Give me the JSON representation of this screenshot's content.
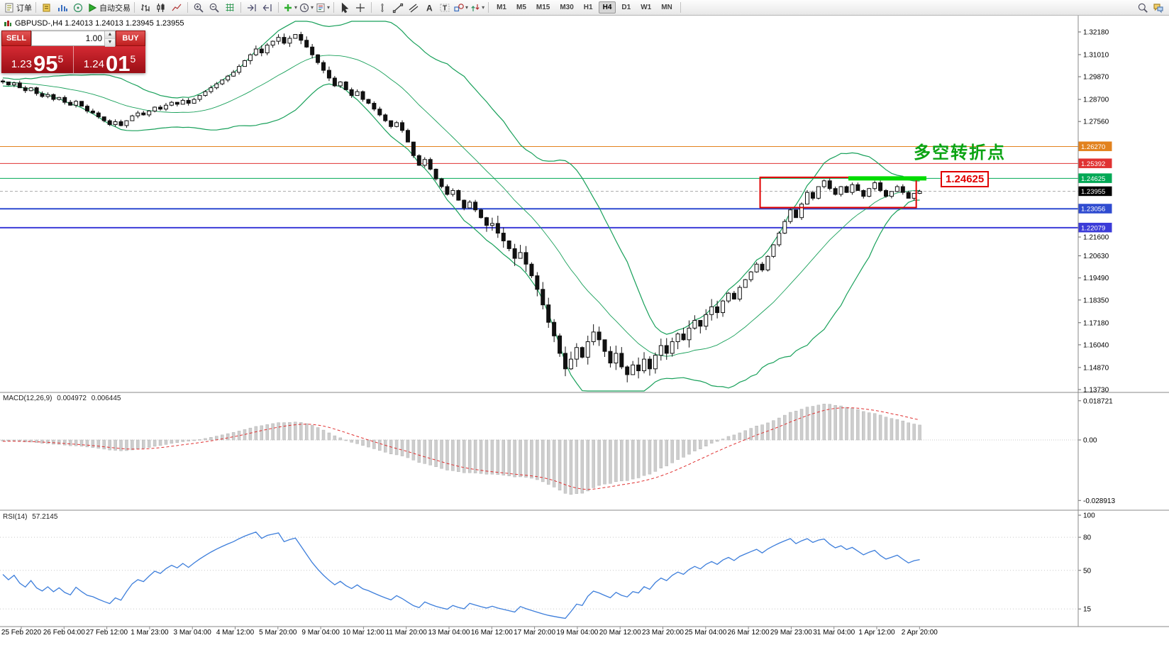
{
  "toolbar": {
    "order_label": "订单",
    "autotrade_label": "自动交易",
    "dropdown_glyph": "▾",
    "timeframes": [
      "M1",
      "M5",
      "M15",
      "M30",
      "H1",
      "H4",
      "D1",
      "W1",
      "MN"
    ],
    "active_timeframe": "H4",
    "groups": [
      {
        "name": "orders",
        "items": [
          {
            "icon": "order-doc-icon",
            "label_key": "order_label"
          }
        ]
      },
      {
        "name": "quick",
        "items": [
          {
            "icon": "new-order-icon"
          },
          {
            "icon": "market-watch-icon"
          },
          {
            "icon": "navigator-icon"
          },
          {
            "icon": "autotrade-icon",
            "label_key": "autotrade_label"
          }
        ]
      },
      {
        "name": "chart-types",
        "items": [
          {
            "icon": "bar-chart-icon"
          },
          {
            "icon": "candlestick-icon"
          },
          {
            "icon": "line-chart-icon"
          }
        ]
      },
      {
        "name": "zoom",
        "items": [
          {
            "icon": "zoom-in-icon"
          },
          {
            "icon": "zoom-out-icon"
          },
          {
            "icon": "grid-icon"
          }
        ]
      },
      {
        "name": "scroll",
        "items": [
          {
            "icon": "auto-scroll-icon"
          },
          {
            "icon": "chart-shift-icon"
          }
        ]
      },
      {
        "name": "insert",
        "items": [
          {
            "icon": "indicators-add-icon",
            "dropdown": true
          },
          {
            "icon": "periods-icon",
            "dropdown": true
          },
          {
            "icon": "templates-icon",
            "dropdown": true
          }
        ]
      },
      {
        "name": "pointer",
        "items": [
          {
            "icon": "cursor-icon"
          },
          {
            "icon": "crosshair-icon"
          }
        ]
      },
      {
        "name": "objects",
        "items": [
          {
            "icon": "vline-icon"
          },
          {
            "icon": "trendline-icon"
          },
          {
            "icon": "channel-icon"
          },
          {
            "icon": "text-icon"
          },
          {
            "icon": "label-icon"
          },
          {
            "icon": "shapes-icon",
            "dropdown": true
          },
          {
            "icon": "arrows-icon",
            "dropdown": true
          }
        ]
      },
      {
        "name": "timeframes",
        "items": "TF"
      },
      {
        "name": "right",
        "items": [
          {
            "icon": "search-icon"
          },
          {
            "icon": "chat-icon"
          }
        ]
      }
    ]
  },
  "chart_header": {
    "title": "GBPUSD-,H4  1.24013 1.24013 1.23945 1.23955"
  },
  "trade_panel": {
    "sell_label": "SELL",
    "buy_label": "BUY",
    "volume": "1.00",
    "sell_price_prefix": "1.23",
    "sell_price_main": "95",
    "sell_price_sup": "5",
    "buy_price_prefix": "1.24",
    "buy_price_main": "01",
    "buy_price_sup": "5"
  },
  "annotations": {
    "turning_point_text": "多空转折点",
    "level_label": "1.24625"
  },
  "indicators": {
    "macd": {
      "label": "MACD(12,26,9)",
      "value_main": "0.004972",
      "value_signal": "0.006445",
      "axis_labels": [
        {
          "text": "0.018721",
          "v": 0.018721
        },
        {
          "text": "0.00",
          "v": 0
        },
        {
          "text": "-0.028913",
          "v": -0.028913
        }
      ]
    },
    "rsi": {
      "label": "RSI(14)",
      "value": "57.2145",
      "axis_labels": [
        {
          "text": "100",
          "v": 100
        },
        {
          "text": "80",
          "v": 80
        },
        {
          "text": "50",
          "v": 50
        },
        {
          "text": "15",
          "v": 15
        }
      ],
      "levels": [
        80,
        50,
        15
      ]
    }
  },
  "price_axis": [
    {
      "value": "1.32180",
      "type": "plain"
    },
    {
      "value": "1.31010",
      "type": "plain"
    },
    {
      "value": "1.29870",
      "type": "plain"
    },
    {
      "value": "1.28700",
      "type": "plain"
    },
    {
      "value": "1.27560",
      "type": "plain"
    },
    {
      "value": "1.26270",
      "type": "badge",
      "color": "#e2821e"
    },
    {
      "value": "1.25392",
      "type": "badge",
      "color": "#e03232"
    },
    {
      "value": "1.24625",
      "type": "badge",
      "color": "#00a854"
    },
    {
      "value": "1.23955",
      "type": "badge",
      "color": "#000000"
    },
    {
      "value": "1.23056",
      "type": "badge",
      "color": "#2f4bd0"
    },
    {
      "value": "1.22079",
      "type": "badge",
      "color": "#3b3bd8"
    },
    {
      "value": "1.21600",
      "type": "plain"
    },
    {
      "value": "1.20630",
      "type": "plain"
    },
    {
      "value": "1.19490",
      "type": "plain"
    },
    {
      "value": "1.18350",
      "type": "plain"
    },
    {
      "value": "1.17180",
      "type": "plain"
    },
    {
      "value": "1.16040",
      "type": "plain"
    },
    {
      "value": "1.14870",
      "type": "plain"
    },
    {
      "value": "1.13730",
      "type": "plain"
    }
  ],
  "chart_data": {
    "type": "candlestick",
    "symbol": "GBPUSD-",
    "timeframe": "H4",
    "ylim": [
      1.1373,
      1.3218
    ],
    "x_labels": [
      "25 Feb 2020",
      "26 Feb 04:00",
      "27 Feb 12:00",
      "1 Mar 23:00",
      "3 Mar 04:00",
      "4 Mar 12:00",
      "5 Mar 20:00",
      "9 Mar 04:00",
      "10 Mar 12:00",
      "11 Mar 20:00",
      "13 Mar 04:00",
      "16 Mar 12:00",
      "17 Mar 20:00",
      "19 Mar 04:00",
      "20 Mar 12:00",
      "23 Mar 20:00",
      "25 Mar 04:00",
      "26 Mar 12:00",
      "29 Mar 23:00",
      "31 Mar 04:00",
      "1 Apr 12:00",
      "2 Apr 20:00"
    ],
    "warmup_closes": [
      1.298,
      1.2975,
      1.2985,
      1.297,
      1.296,
      1.2972,
      1.2965,
      1.2955,
      1.2968,
      1.2958,
      1.295,
      1.2962,
      1.2955,
      1.2945,
      1.2958,
      1.295,
      1.2942,
      1.2955,
      1.2948,
      1.2965
    ],
    "closes": [
      1.296,
      1.2945,
      1.2955,
      1.293,
      1.2915,
      1.293,
      1.29,
      1.2885,
      1.2895,
      1.287,
      1.288,
      1.2855,
      1.284,
      1.286,
      1.2835,
      1.281,
      1.28,
      1.278,
      1.276,
      1.274,
      1.2755,
      1.2735,
      1.276,
      1.2785,
      1.28,
      1.279,
      1.281,
      1.283,
      1.282,
      1.284,
      1.2855,
      1.2845,
      1.2865,
      1.285,
      1.287,
      1.289,
      1.291,
      1.293,
      1.295,
      1.297,
      1.299,
      1.301,
      1.304,
      1.307,
      1.31,
      1.313,
      1.311,
      1.315,
      1.317,
      1.319,
      1.316,
      1.3185,
      1.3205,
      1.3175,
      1.314,
      1.31,
      1.306,
      1.302,
      1.298,
      1.294,
      1.296,
      1.292,
      1.289,
      1.291,
      1.287,
      1.285,
      1.282,
      1.279,
      1.276,
      1.273,
      1.275,
      1.271,
      1.265,
      1.258,
      1.253,
      1.256,
      1.251,
      1.246,
      1.242,
      1.238,
      1.24,
      1.235,
      1.231,
      1.234,
      1.23,
      1.226,
      1.222,
      1.223,
      1.218,
      1.214,
      1.21,
      1.205,
      1.208,
      1.202,
      1.196,
      1.189,
      1.181,
      1.172,
      1.165,
      1.156,
      1.148,
      1.153,
      1.159,
      1.154,
      1.162,
      1.167,
      1.163,
      1.157,
      1.151,
      1.156,
      1.149,
      1.145,
      1.15,
      1.147,
      1.153,
      1.148,
      1.155,
      1.16,
      1.156,
      1.162,
      1.166,
      1.163,
      1.169,
      1.173,
      1.17,
      1.176,
      1.18,
      1.177,
      1.183,
      1.187,
      1.184,
      1.19,
      1.194,
      1.198,
      1.202,
      1.199,
      1.206,
      1.212,
      1.218,
      1.224,
      1.23,
      1.226,
      1.233,
      1.239,
      1.236,
      1.242,
      1.245,
      1.241,
      1.238,
      1.242,
      1.239,
      1.243,
      1.24,
      1.237,
      1.241,
      1.244,
      1.24,
      1.237,
      1.2395,
      1.242,
      1.239,
      1.236,
      1.2385,
      1.2396
    ],
    "bollinger": {
      "period": 20,
      "deviation": 2,
      "color": "#18a05a"
    },
    "levels": [
      {
        "price": 1.2627,
        "color": "#e2821e",
        "width": 1
      },
      {
        "price": 1.25392,
        "color": "#e03232",
        "width": 1
      },
      {
        "price": 1.24625,
        "color": "#00a854",
        "width": 1
      },
      {
        "price": 1.23056,
        "color": "#2f4bd0",
        "width": 2
      },
      {
        "price": 1.22079,
        "color": "#3b3bd8",
        "width": 2
      },
      {
        "price": 1.23955,
        "color": "#aaaaaa",
        "width": 1,
        "dash": "4,3"
      }
    ],
    "current_price": 1.23955,
    "range_box": {
      "from_index": 135,
      "to_index": 162,
      "top_price": 1.2468,
      "bottom_price": 1.2312,
      "color": "#e00000"
    },
    "highlight_segment": {
      "price": 1.24625,
      "color": "#00dc00",
      "x_from": 1196,
      "x_to": 1306,
      "width": 6
    }
  }
}
